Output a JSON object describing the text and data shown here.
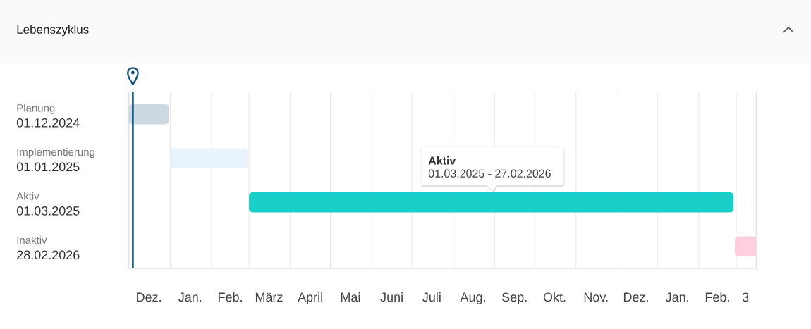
{
  "chart_data": {
    "type": "bar",
    "orientation": "horizontal",
    "title": "Lebenszyklus",
    "categories": [
      "Planung",
      "Implementierung",
      "Aktiv",
      "Inaktiv"
    ],
    "base": [
      20058,
      20089,
      20148,
      20512
    ],
    "values": [
      30,
      58,
      363,
      16
    ],
    "colors": [
      "#cdd8e3",
      "#e8f3fd",
      "#1bcfc9",
      "#fdcfdf"
    ],
    "xlim": [
      "2024-12-01",
      "2026-03-16"
    ],
    "xticks": [
      {
        "value": "2024-12-01",
        "label": null
      },
      {
        "value": "2024-12-16",
        "label": "Dez."
      },
      {
        "value": "2025-01-01",
        "label": null
      },
      {
        "value": "2025-01-16",
        "label": "Jan."
      },
      {
        "value": "2025-02-01",
        "label": null
      },
      {
        "value": "2025-02-15",
        "label": "Feb."
      },
      {
        "value": "2025-03-01",
        "label": null
      },
      {
        "value": "2025-03-16",
        "label": "März"
      },
      {
        "value": "2025-04-01",
        "label": null
      },
      {
        "value": "2025-04-16",
        "label": "April"
      },
      {
        "value": "2025-05-01",
        "label": null
      },
      {
        "value": "2025-05-16",
        "label": "Mai"
      },
      {
        "value": "2025-06-01",
        "label": null
      },
      {
        "value": "2025-06-16",
        "label": "Juni"
      },
      {
        "value": "2025-07-01",
        "label": null
      },
      {
        "value": "2025-07-16",
        "label": "Juli"
      },
      {
        "value": "2025-08-01",
        "label": null
      },
      {
        "value": "2025-08-16",
        "label": "Aug."
      },
      {
        "value": "2025-09-01",
        "label": null
      },
      {
        "value": "2025-09-16",
        "label": "Sep."
      },
      {
        "value": "2025-10-01",
        "label": null
      },
      {
        "value": "2025-10-16",
        "label": "Okt."
      },
      {
        "value": "2025-11-01",
        "label": null
      },
      {
        "value": "2025-11-16",
        "label": "Nov."
      },
      {
        "value": "2025-12-01",
        "label": null
      },
      {
        "value": "2025-12-16",
        "label": "Dez."
      },
      {
        "value": "2026-01-01",
        "label": null
      },
      {
        "value": "2026-01-16",
        "label": "Jan."
      },
      {
        "value": "2026-02-01",
        "label": null
      },
      {
        "value": "2026-02-15",
        "label": "Feb."
      },
      {
        "value": "2026-03-01",
        "label": null
      },
      {
        "value": "2026-03-08",
        "label": "3"
      }
    ],
    "grid": "x",
    "ref_lines": [
      {
        "axis": "x",
        "value": "2024-12-04",
        "color": "#0d5282"
      }
    ],
    "annotations": [
      "01.12.2024",
      "01.01.2025",
      "01.03.2025",
      "28.02.2026",
      "Aktiv",
      "01.03.2025 - 27.02.2026"
    ]
  }
}
